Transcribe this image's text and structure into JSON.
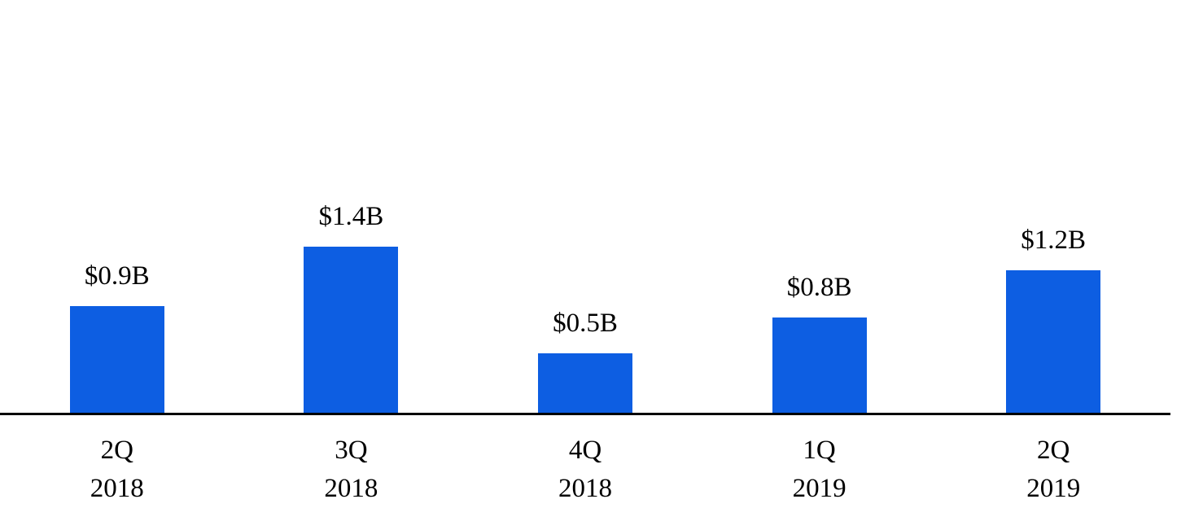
{
  "chart_data": {
    "type": "bar",
    "categories": [
      {
        "line1": "2Q",
        "line2": "2018"
      },
      {
        "line1": "3Q",
        "line2": "2018"
      },
      {
        "line1": "4Q",
        "line2": "2018"
      },
      {
        "line1": "1Q",
        "line2": "2019"
      },
      {
        "line1": "2Q",
        "line2": "2019"
      }
    ],
    "values": [
      0.9,
      1.4,
      0.5,
      0.8,
      1.2
    ],
    "value_labels": [
      "$0.9B",
      "$1.4B",
      "$0.5B",
      "$0.8B",
      "$1.2B"
    ],
    "title": "",
    "xlabel": "",
    "ylabel": "",
    "ylim": [
      0,
      1.5
    ],
    "grid": false,
    "legend_position": "none",
    "y_axis_visible": false,
    "value_label_position": "above-bar",
    "bar_color": "#0D5EE2",
    "axis_color": "#000000",
    "text_color": "#000000",
    "background_color": "#FFFFFF"
  }
}
